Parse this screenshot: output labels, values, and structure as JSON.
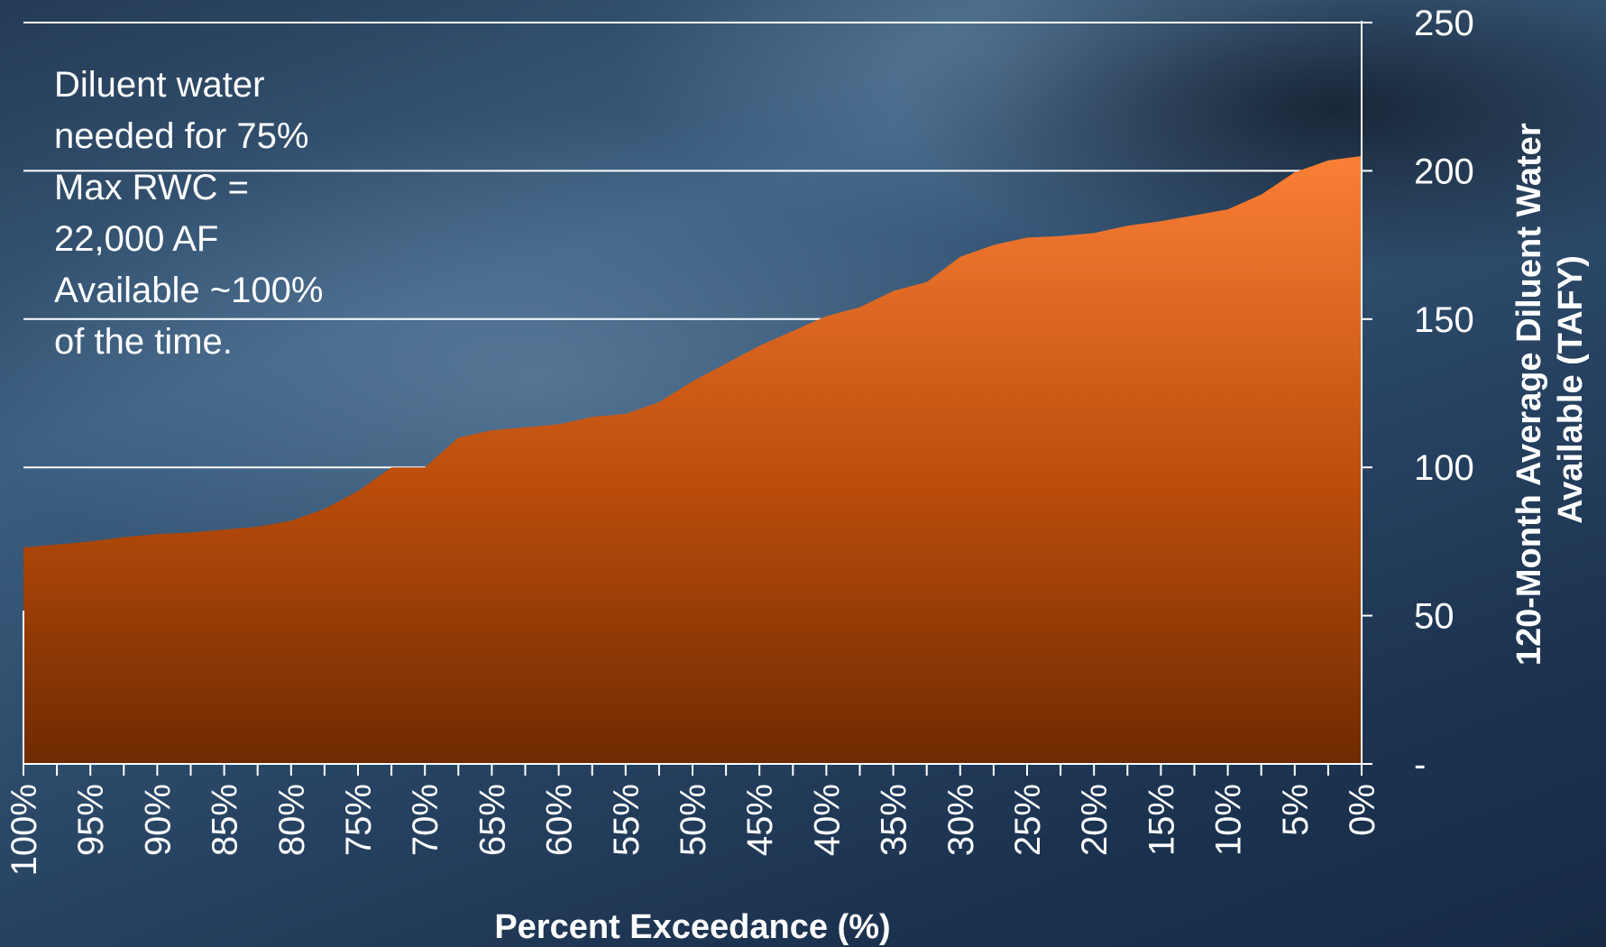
{
  "chart_data": {
    "type": "area",
    "xlabel": "Percent Exceedance (%)",
    "ylabel_lines": [
      "120-Month Average Diluent Water",
      "Available (TAFY)"
    ],
    "x_ticks": [
      "100%",
      "95%",
      "90%",
      "85%",
      "80%",
      "75%",
      "70%",
      "65%",
      "60%",
      "55%",
      "50%",
      "45%",
      "40%",
      "35%",
      "30%",
      "25%",
      "20%",
      "15%",
      "10%",
      "5%",
      "0%"
    ],
    "y_ticks": [
      "-",
      "50",
      "100",
      "150",
      "200",
      "250"
    ],
    "ylim": [
      0,
      250
    ],
    "xlim": [
      100,
      0
    ],
    "x_axis_reversed": true,
    "grid": "horizontal",
    "y_axis_position": "right",
    "series": [
      {
        "color": "#f07a30",
        "x": [
          100,
          97.5,
          95,
          92.5,
          90,
          87.5,
          85,
          82.5,
          80,
          77.5,
          75,
          72.5,
          70,
          67.5,
          65,
          62.5,
          60,
          57.5,
          55,
          52.5,
          50,
          47.5,
          45,
          42.5,
          40,
          37.5,
          35,
          32.5,
          30,
          27.5,
          25,
          22.5,
          20,
          17.5,
          15,
          12.5,
          10,
          7.5,
          5,
          2.5,
          0
        ],
        "values": [
          73,
          74,
          75,
          76.5,
          77.5,
          78,
          79,
          80,
          82,
          86,
          92,
          100,
          100,
          110,
          112.5,
          113.5,
          114.5,
          117,
          118,
          122,
          129,
          135,
          141,
          146,
          151,
          154,
          159.5,
          162.5,
          171,
          175,
          177.5,
          178,
          179,
          181.5,
          183,
          185,
          187,
          192,
          199.5,
          203.5,
          205
        ]
      }
    ]
  },
  "annotation": {
    "lines": [
      "Diluent water",
      "needed for 75%",
      "Max RWC =",
      "22,000 AF",
      "Available ~100%",
      "of the time."
    ]
  }
}
